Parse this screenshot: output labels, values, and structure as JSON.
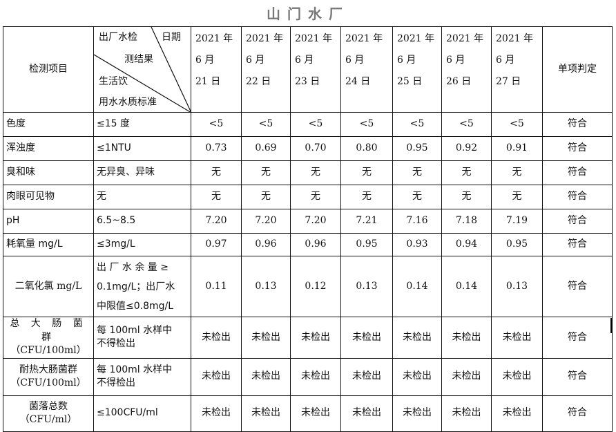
{
  "title": "山门水厂",
  "header": {
    "item": "检测项目",
    "diag_top_left": "出厂水检",
    "diag_top_right": "日期",
    "diag_mid": "测结果",
    "diag_bottom_1": "生活饮",
    "diag_bottom_2": "用水水质标准",
    "judgement": "单项判定",
    "dates": [
      [
        "2021 年",
        "6 月",
        "21 日"
      ],
      [
        "2021 年",
        "6 月",
        "22 日"
      ],
      [
        "2021 年",
        "6 月",
        "23 日"
      ],
      [
        "2021 年",
        "6 月",
        "24 日"
      ],
      [
        "2021 年",
        "6 月",
        "25 日"
      ],
      [
        "2021 年",
        "6 月",
        "26 日"
      ],
      [
        "2021 年",
        "6 月",
        "27 日"
      ]
    ]
  },
  "rows": [
    {
      "item": [
        "色度"
      ],
      "standard": [
        "≤15 度"
      ],
      "values": [
        "<5",
        "<5",
        "<5",
        "<5",
        "<5",
        "<5",
        "<5"
      ],
      "result": "符合"
    },
    {
      "item": [
        "浑浊度"
      ],
      "standard": [
        "≤1NTU"
      ],
      "values": [
        "0.73",
        "0.69",
        "0.70",
        "0.80",
        "0.95",
        "0.92",
        "0.91"
      ],
      "result": "符合"
    },
    {
      "item": [
        "臭和味"
      ],
      "standard": [
        "无异臭、异味"
      ],
      "values": [
        "无",
        "无",
        "无",
        "无",
        "无",
        "无",
        "无"
      ],
      "result": "符合"
    },
    {
      "item": [
        "肉眼可见物"
      ],
      "standard": [
        "无"
      ],
      "values": [
        "无",
        "无",
        "无",
        "无",
        "无",
        "无",
        "无"
      ],
      "result": "符合"
    },
    {
      "item": [
        "pH"
      ],
      "standard": [
        "6.5~8.5"
      ],
      "values": [
        "7.20",
        "7.20",
        "7.20",
        "7.21",
        "7.16",
        "7.18",
        "7.19"
      ],
      "result": "符合"
    },
    {
      "item": [
        "耗氧量 mg/L"
      ],
      "standard": [
        "≤3mg/L"
      ],
      "values": [
        "0.97",
        "0.96",
        "0.96",
        "0.95",
        "0.93",
        "0.94",
        "0.95"
      ],
      "result": "符合"
    },
    {
      "item": [
        "二氧化氯 mg/L"
      ],
      "standard": [
        "出 厂 水 余 量 ≥",
        "0.1mg/L；出厂水",
        "中限值≤0.8mg/L"
      ],
      "values": [
        "0.11",
        "0.13",
        "0.12",
        "0.13",
        "0.14",
        "0.14",
        "0.13"
      ],
      "result": "符合"
    },
    {
      "item": [
        "总 大 肠 菌 群",
        "（CFU/100ml）"
      ],
      "standard": [
        "每 100ml 水样中",
        "不得检出"
      ],
      "values": [
        "未检出",
        "未检出",
        "未检出",
        "未检出",
        "未检出",
        "未检出",
        "未检出"
      ],
      "result": "符合"
    },
    {
      "item": [
        "耐热大肠菌群",
        "（CFU/100ml）"
      ],
      "standard": [
        "每 100ml 水样中",
        "不得检出"
      ],
      "values": [
        "未检出",
        "未检出",
        "未检出",
        "未检出",
        "未检出",
        "未检出",
        "未检出"
      ],
      "result": "符合"
    },
    {
      "item": [
        "菌落总数",
        "（CFU/ml）"
      ],
      "standard": [
        "≤100CFU/ml"
      ],
      "values": [
        "未检出",
        "未检出",
        "未检出",
        "未检出",
        "未检出",
        "未检出",
        "未检出"
      ],
      "result": "符合"
    }
  ]
}
